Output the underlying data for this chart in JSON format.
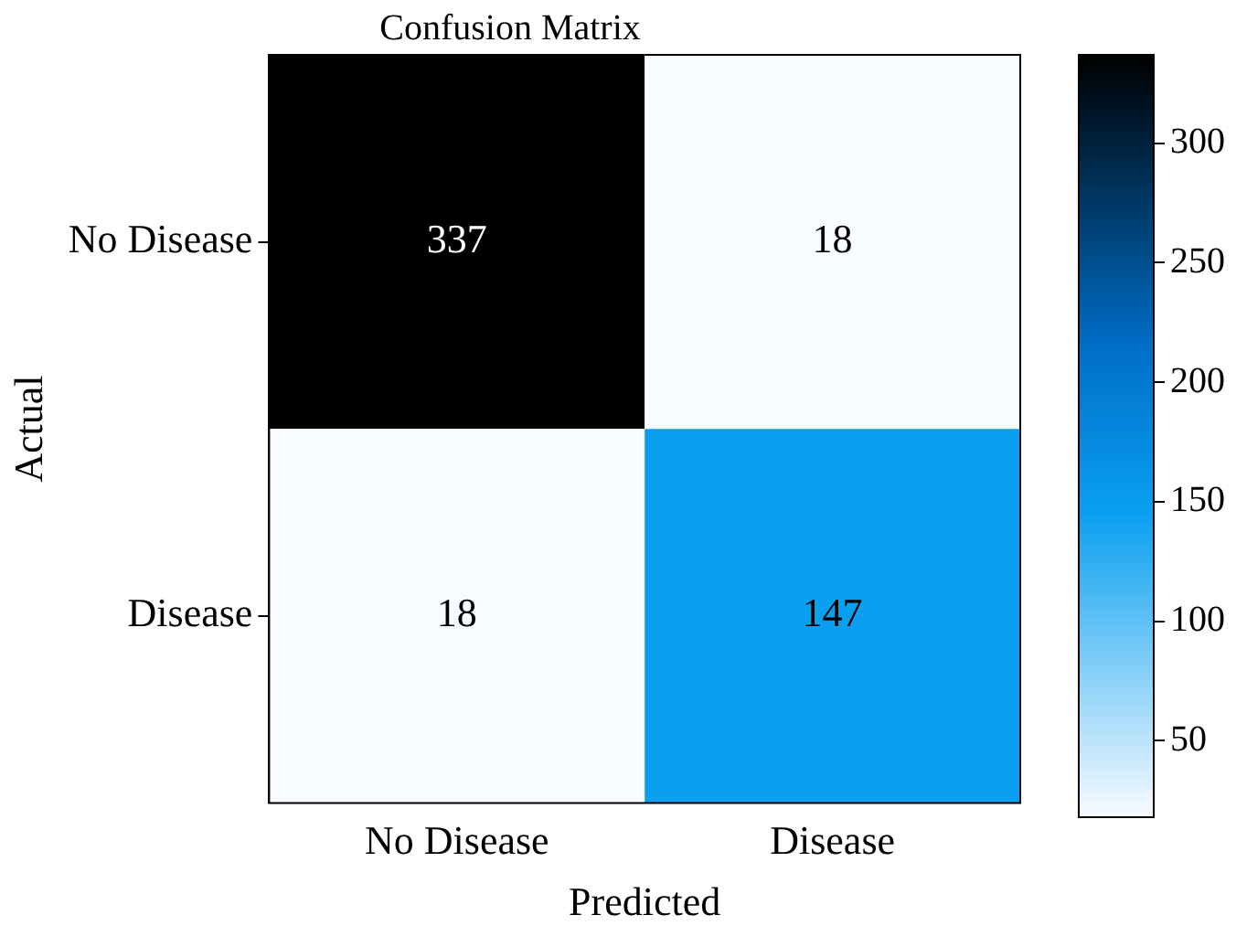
{
  "chart_data": {
    "type": "heatmap",
    "title": "Confusion Matrix",
    "xlabel": "Predicted",
    "ylabel": "Actual",
    "categories": [
      "No Disease",
      "Disease"
    ],
    "y_categories": [
      "No Disease",
      "Disease"
    ],
    "cells": [
      [
        337,
        18
      ],
      [
        18,
        147
      ]
    ],
    "clim": [
      18,
      337
    ],
    "cticks": [
      50,
      100,
      150,
      200,
      250,
      300
    ],
    "data_labels": true,
    "grid": false,
    "legend": false
  }
}
